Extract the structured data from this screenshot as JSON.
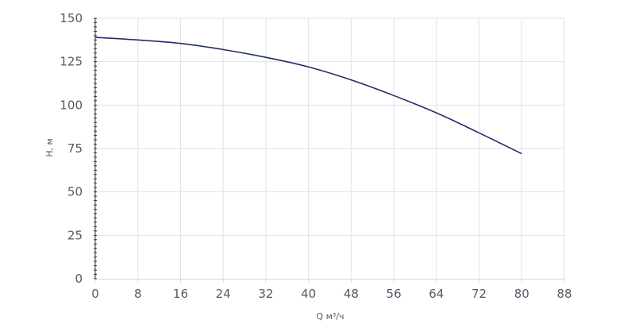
{
  "chart_data": {
    "type": "line",
    "title": "",
    "xlabel": "Q м³/ч",
    "ylabel": "H, м",
    "xlim": [
      0,
      88
    ],
    "ylim": [
      0,
      150
    ],
    "x_ticks": [
      "0",
      "8",
      "16",
      "24",
      "32",
      "40",
      "48",
      "56",
      "64",
      "72",
      "80",
      "88"
    ],
    "y_ticks": [
      "0",
      "25",
      "50",
      "75",
      "100",
      "125",
      "150"
    ],
    "grid": true,
    "legend": "none",
    "colors": {
      "curve": "#1f2d6b",
      "grid": "#dfe3ea",
      "axis": "#c9d9ee"
    },
    "series": [
      {
        "x": [
          0,
          8,
          16,
          24,
          32,
          40,
          48,
          56,
          64,
          72,
          80
        ],
        "y": [
          139,
          137.5,
          135.5,
          132,
          127.5,
          122,
          114.5,
          105.5,
          95.5,
          84,
          72
        ]
      }
    ]
  }
}
